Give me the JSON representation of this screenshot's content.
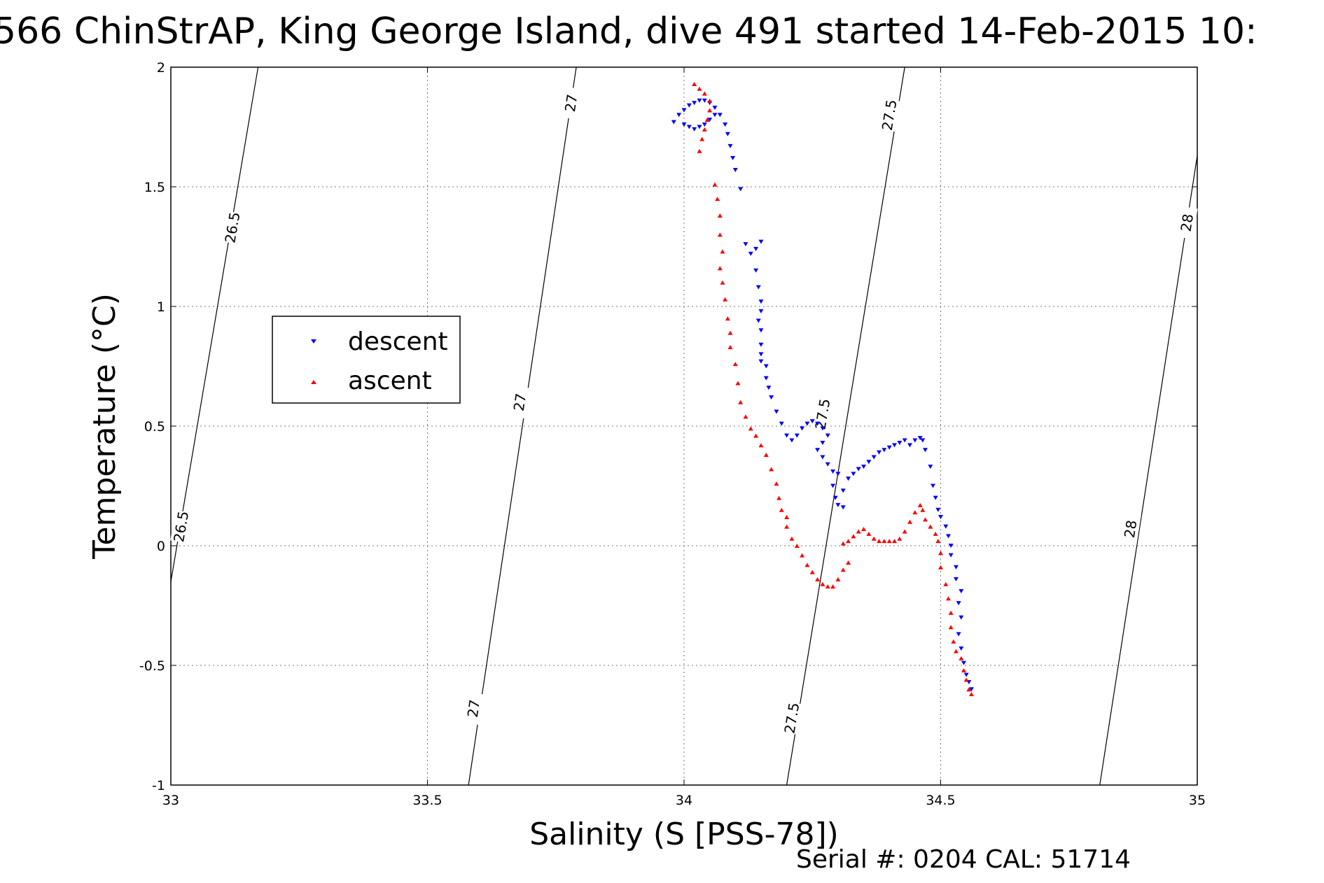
{
  "chart_data": {
    "type": "scatter",
    "title": "566 ChinStrAP, King George Island, dive 491 started 14-Feb-2015 10:",
    "xlabel": "Salinity (S [PSS-78])",
    "ylabel": "Temperature (°C)",
    "xlim": [
      33,
      35
    ],
    "ylim": [
      -1,
      2
    ],
    "xticks": [
      33,
      33.5,
      34,
      34.5,
      35
    ],
    "xtick_labels": [
      "33",
      "33.5",
      "34",
      "34.5",
      "35"
    ],
    "yticks": [
      -1,
      -0.5,
      0,
      0.5,
      1,
      1.5,
      2
    ],
    "ytick_labels": [
      "-1",
      "-0.5",
      "0",
      "0.5",
      "1",
      "1.5",
      "2"
    ],
    "grid": true,
    "legend_position": "left",
    "footer": "Serial #: 0204  CAL: 51714",
    "series": [
      {
        "name": "descent",
        "color": "#0000ff",
        "marker": "triangle-down",
        "points": [
          [
            33.98,
            1.77
          ],
          [
            33.99,
            1.8
          ],
          [
            34.0,
            1.82
          ],
          [
            34.01,
            1.84
          ],
          [
            34.02,
            1.85
          ],
          [
            34.03,
            1.86
          ],
          [
            34.04,
            1.86
          ],
          [
            34.05,
            1.85
          ],
          [
            34.06,
            1.83
          ],
          [
            34.07,
            1.8
          ],
          [
            34.08,
            1.76
          ],
          [
            34.085,
            1.72
          ],
          [
            34.09,
            1.67
          ],
          [
            34.095,
            1.62
          ],
          [
            34.1,
            1.57
          ],
          [
            34.11,
            1.49
          ],
          [
            34.06,
            1.8
          ],
          [
            34.05,
            1.78
          ],
          [
            34.04,
            1.76
          ],
          [
            34.03,
            1.75
          ],
          [
            34.02,
            1.74
          ],
          [
            34.01,
            1.75
          ],
          [
            34.0,
            1.76
          ],
          [
            34.12,
            1.26
          ],
          [
            34.13,
            1.22
          ],
          [
            34.14,
            1.24
          ],
          [
            34.15,
            1.27
          ],
          [
            34.14,
            1.15
          ],
          [
            34.145,
            1.08
          ],
          [
            34.15,
            1.02
          ],
          [
            34.15,
            0.98
          ],
          [
            34.145,
            0.94
          ],
          [
            34.15,
            0.9
          ],
          [
            34.15,
            0.84
          ],
          [
            34.15,
            0.8
          ],
          [
            34.15,
            0.77
          ],
          [
            34.16,
            0.75
          ],
          [
            34.16,
            0.7
          ],
          [
            34.165,
            0.66
          ],
          [
            34.17,
            0.62
          ],
          [
            34.18,
            0.56
          ],
          [
            34.19,
            0.51
          ],
          [
            34.2,
            0.46
          ],
          [
            34.21,
            0.44
          ],
          [
            34.22,
            0.46
          ],
          [
            34.23,
            0.49
          ],
          [
            34.24,
            0.51
          ],
          [
            34.25,
            0.52
          ],
          [
            34.26,
            0.51
          ],
          [
            34.27,
            0.49
          ],
          [
            34.28,
            0.46
          ],
          [
            34.27,
            0.43
          ],
          [
            34.26,
            0.4
          ],
          [
            34.27,
            0.37
          ],
          [
            34.28,
            0.34
          ],
          [
            34.29,
            0.31
          ],
          [
            34.3,
            0.3
          ],
          [
            34.29,
            0.25
          ],
          [
            34.295,
            0.2
          ],
          [
            34.3,
            0.17
          ],
          [
            34.31,
            0.16
          ],
          [
            34.31,
            0.23
          ],
          [
            34.32,
            0.28
          ],
          [
            34.33,
            0.3
          ],
          [
            34.34,
            0.32
          ],
          [
            34.35,
            0.33
          ],
          [
            34.36,
            0.35
          ],
          [
            34.37,
            0.37
          ],
          [
            34.38,
            0.39
          ],
          [
            34.39,
            0.4
          ],
          [
            34.4,
            0.41
          ],
          [
            34.41,
            0.42
          ],
          [
            34.42,
            0.43
          ],
          [
            34.43,
            0.44
          ],
          [
            34.44,
            0.42
          ],
          [
            34.45,
            0.44
          ],
          [
            34.46,
            0.45
          ],
          [
            34.465,
            0.44
          ],
          [
            34.47,
            0.4
          ],
          [
            34.48,
            0.33
          ],
          [
            34.485,
            0.25
          ],
          [
            34.49,
            0.2
          ],
          [
            34.495,
            0.15
          ],
          [
            34.5,
            0.12
          ],
          [
            34.51,
            0.08
          ],
          [
            34.515,
            0.04
          ],
          [
            34.52,
            0.0
          ],
          [
            34.52,
            -0.04
          ],
          [
            34.53,
            -0.09
          ],
          [
            34.53,
            -0.14
          ],
          [
            34.54,
            -0.19
          ],
          [
            34.535,
            -0.24
          ],
          [
            34.54,
            -0.3
          ],
          [
            34.535,
            -0.37
          ],
          [
            34.54,
            -0.43
          ],
          [
            34.545,
            -0.49
          ],
          [
            34.55,
            -0.54
          ],
          [
            34.555,
            -0.57
          ],
          [
            34.56,
            -0.6
          ]
        ]
      },
      {
        "name": "ascent",
        "color": "#ff0000",
        "marker": "triangle-up",
        "points": [
          [
            34.02,
            1.93
          ],
          [
            34.03,
            1.91
          ],
          [
            34.04,
            1.89
          ],
          [
            34.05,
            1.86
          ],
          [
            34.05,
            1.82
          ],
          [
            34.045,
            1.78
          ],
          [
            34.04,
            1.74
          ],
          [
            34.035,
            1.7
          ],
          [
            34.03,
            1.65
          ],
          [
            34.06,
            1.51
          ],
          [
            34.065,
            1.45
          ],
          [
            34.07,
            1.38
          ],
          [
            34.07,
            1.3
          ],
          [
            34.075,
            1.23
          ],
          [
            34.07,
            1.16
          ],
          [
            34.075,
            1.1
          ],
          [
            34.08,
            1.03
          ],
          [
            34.085,
            0.95
          ],
          [
            34.09,
            0.89
          ],
          [
            34.09,
            0.83
          ],
          [
            34.1,
            0.76
          ],
          [
            34.105,
            0.68
          ],
          [
            34.11,
            0.6
          ],
          [
            34.12,
            0.54
          ],
          [
            34.13,
            0.49
          ],
          [
            34.14,
            0.46
          ],
          [
            34.15,
            0.42
          ],
          [
            34.16,
            0.38
          ],
          [
            34.17,
            0.32
          ],
          [
            34.18,
            0.26
          ],
          [
            34.185,
            0.2
          ],
          [
            34.19,
            0.15
          ],
          [
            34.2,
            0.12
          ],
          [
            34.2,
            0.08
          ],
          [
            34.21,
            0.03
          ],
          [
            34.22,
            0.0
          ],
          [
            34.23,
            -0.04
          ],
          [
            34.24,
            -0.08
          ],
          [
            34.25,
            -0.11
          ],
          [
            34.26,
            -0.14
          ],
          [
            34.27,
            -0.16
          ],
          [
            34.28,
            -0.17
          ],
          [
            34.29,
            -0.17
          ],
          [
            34.3,
            -0.14
          ],
          [
            34.31,
            -0.1
          ],
          [
            34.32,
            -0.07
          ],
          [
            34.31,
            0.01
          ],
          [
            34.32,
            0.02
          ],
          [
            34.33,
            0.04
          ],
          [
            34.34,
            0.06
          ],
          [
            34.35,
            0.07
          ],
          [
            34.36,
            0.05
          ],
          [
            34.37,
            0.03
          ],
          [
            34.38,
            0.02
          ],
          [
            34.39,
            0.02
          ],
          [
            34.4,
            0.02
          ],
          [
            34.41,
            0.02
          ],
          [
            34.42,
            0.03
          ],
          [
            34.43,
            0.06
          ],
          [
            34.44,
            0.1
          ],
          [
            34.45,
            0.14
          ],
          [
            34.46,
            0.17
          ],
          [
            34.465,
            0.15
          ],
          [
            34.47,
            0.11
          ],
          [
            34.48,
            0.08
          ],
          [
            34.49,
            0.05
          ],
          [
            34.495,
            0.02
          ],
          [
            34.5,
            -0.03
          ],
          [
            34.5,
            -0.09
          ],
          [
            34.51,
            -0.16
          ],
          [
            34.515,
            -0.22
          ],
          [
            34.52,
            -0.28
          ],
          [
            34.52,
            -0.34
          ],
          [
            34.525,
            -0.4
          ],
          [
            34.53,
            -0.44
          ],
          [
            34.54,
            -0.47
          ],
          [
            34.545,
            -0.52
          ],
          [
            34.55,
            -0.56
          ],
          [
            34.555,
            -0.6
          ],
          [
            34.56,
            -0.62
          ]
        ]
      }
    ],
    "contours": [
      {
        "label": "26.5",
        "line": [
          [
            33.0,
            -0.15
          ],
          [
            33.17,
            2.0
          ]
        ],
        "labels_at": [
          [
            33.02,
            0.08
          ],
          [
            33.12,
            1.33
          ]
        ]
      },
      {
        "label": "27",
        "line": [
          [
            33.58,
            -1.0
          ],
          [
            33.79,
            2.0
          ]
        ],
        "labels_at": [
          [
            33.59,
            -0.68
          ],
          [
            33.68,
            0.6
          ],
          [
            33.78,
            1.85
          ]
        ]
      },
      {
        "label": "27.5",
        "line": [
          [
            34.2,
            -1.0
          ],
          [
            34.43,
            2.0
          ]
        ],
        "labels_at": [
          [
            34.21,
            -0.72
          ],
          [
            34.27,
            0.55
          ],
          [
            34.4,
            1.8
          ]
        ]
      },
      {
        "label": "28",
        "line": [
          [
            34.81,
            -1.0
          ],
          [
            35.0,
            1.63
          ]
        ],
        "labels_at": [
          [
            34.87,
            0.07
          ],
          [
            34.98,
            1.35
          ]
        ]
      }
    ]
  }
}
